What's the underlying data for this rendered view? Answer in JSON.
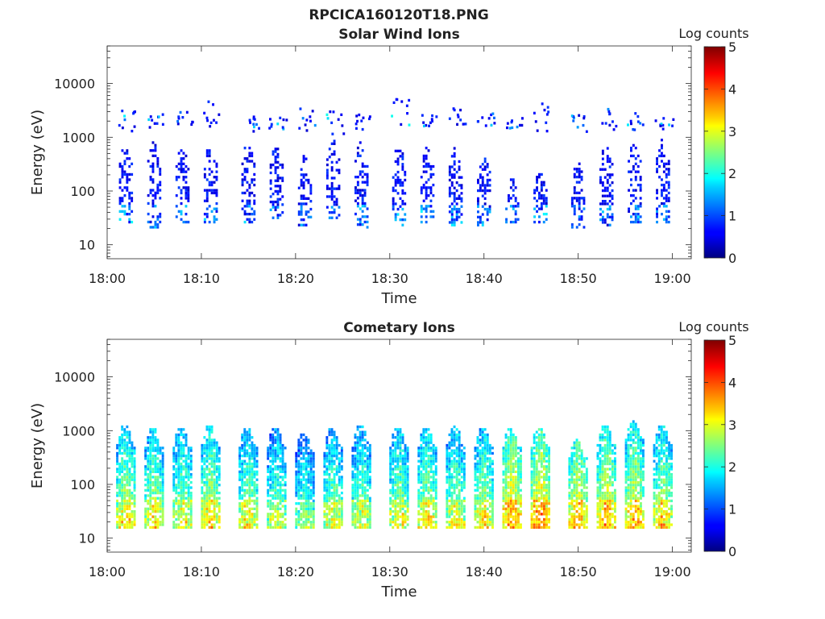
{
  "figure_title": "RPCICA160120T18.PNG",
  "chart_data": [
    {
      "type": "heatmap",
      "title": "Solar Wind Ions",
      "xlabel": "Time",
      "ylabel": "Energy (eV)",
      "y_scale": "log",
      "ylim": [
        5.5,
        50000
      ],
      "xlim": [
        "18:00",
        "19:02"
      ],
      "x_ticks": [
        "18:00",
        "18:10",
        "18:20",
        "18:30",
        "18:40",
        "18:50",
        "19:00"
      ],
      "y_ticks": [
        "10",
        "100",
        "1000",
        "10000"
      ],
      "colorbar": {
        "label": "Log counts",
        "min": 0,
        "max": 5,
        "ticks": [
          "0",
          "1",
          "2",
          "3",
          "4",
          "5"
        ],
        "colormap": "jet"
      },
      "scan_period_min": 3.2,
      "bursts": [
        {
          "start": "18:01",
          "center": "18:02",
          "e_low": 25,
          "e_high": 650,
          "peak_log_counts": 1.8,
          "upper_e_low": 1200,
          "upper_e_high": 3500
        },
        {
          "start": "18:04",
          "center": "18:05",
          "e_low": 20,
          "e_high": 700,
          "peak_log_counts": 1.6,
          "upper_e_low": 1300,
          "upper_e_high": 2500
        },
        {
          "start": "18:07",
          "center": "18:08",
          "e_low": 25,
          "e_high": 600,
          "peak_log_counts": 1.6,
          "upper_e_low": 1300,
          "upper_e_high": 3000
        },
        {
          "start": "18:10",
          "center": "18:11",
          "e_low": 25,
          "e_high": 650,
          "peak_log_counts": 1.7,
          "upper_e_low": 1200,
          "upper_e_high": 4500
        },
        {
          "start": "18:14",
          "center": "18:15",
          "e_low": 25,
          "e_high": 700,
          "peak_log_counts": 1.4,
          "upper_e_low": 1200,
          "upper_e_high": 2800
        },
        {
          "start": "18:17",
          "center": "18:18",
          "e_low": 30,
          "e_high": 650,
          "peak_log_counts": 1.5,
          "upper_e_low": 1300,
          "upper_e_high": 2200
        },
        {
          "start": "18:20",
          "center": "18:21",
          "e_low": 22,
          "e_high": 400,
          "peak_log_counts": 1.3,
          "upper_e_low": 1200,
          "upper_e_high": 4000
        },
        {
          "start": "18:23",
          "center": "18:24",
          "e_low": 30,
          "e_high": 800,
          "peak_log_counts": 1.6,
          "upper_e_low": 1000,
          "upper_e_high": 3500
        },
        {
          "start": "18:26",
          "center": "18:27",
          "e_low": 20,
          "e_high": 700,
          "peak_log_counts": 1.4,
          "upper_e_low": 1300,
          "upper_e_high": 2500
        },
        {
          "start": "18:30",
          "center": "18:31",
          "e_low": 22,
          "e_high": 650,
          "peak_log_counts": 1.8,
          "upper_e_low": 1300,
          "upper_e_high": 5000
        },
        {
          "start": "18:33",
          "center": "18:34",
          "e_low": 25,
          "e_high": 600,
          "peak_log_counts": 1.6,
          "upper_e_low": 1300,
          "upper_e_high": 2500
        },
        {
          "start": "18:36",
          "center": "18:37",
          "e_low": 22,
          "e_high": 550,
          "peak_log_counts": 1.6,
          "upper_e_low": 1200,
          "upper_e_high": 3500
        },
        {
          "start": "18:39",
          "center": "18:40",
          "e_low": 22,
          "e_high": 500,
          "peak_log_counts": 1.6,
          "upper_e_low": 1500,
          "upper_e_high": 3000
        },
        {
          "start": "18:42",
          "center": "18:43",
          "e_low": 25,
          "e_high": 150,
          "peak_log_counts": 1.4,
          "upper_e_low": 1300,
          "upper_e_high": 2200
        },
        {
          "start": "18:45",
          "center": "18:46",
          "e_low": 25,
          "e_high": 200,
          "peak_log_counts": 1.9,
          "upper_e_low": 1200,
          "upper_e_high": 4000
        },
        {
          "start": "18:49",
          "center": "18:50",
          "e_low": 20,
          "e_high": 300,
          "peak_log_counts": 1.6,
          "upper_e_low": 1200,
          "upper_e_high": 2500
        },
        {
          "start": "18:52",
          "center": "18:53",
          "e_low": 22,
          "e_high": 600,
          "peak_log_counts": 1.7,
          "upper_e_low": 1200,
          "upper_e_high": 3200
        },
        {
          "start": "18:55",
          "center": "18:56",
          "e_low": 25,
          "e_high": 750,
          "peak_log_counts": 1.7,
          "upper_e_low": 1300,
          "upper_e_high": 2700
        },
        {
          "start": "18:58",
          "center": "18:59",
          "e_low": 25,
          "e_high": 800,
          "peak_log_counts": 1.5,
          "upper_e_low": 1300,
          "upper_e_high": 2500
        }
      ]
    },
    {
      "type": "heatmap",
      "title": "Cometary Ions",
      "xlabel": "Time",
      "ylabel": "Energy (eV)",
      "y_scale": "log",
      "ylim": [
        5.5,
        50000
      ],
      "xlim": [
        "18:00",
        "19:02"
      ],
      "x_ticks": [
        "18:00",
        "18:10",
        "18:20",
        "18:30",
        "18:40",
        "18:50",
        "19:00"
      ],
      "y_ticks": [
        "10",
        "100",
        "1000",
        "10000"
      ],
      "colorbar": {
        "label": "Log counts",
        "min": 0,
        "max": 5,
        "ticks": [
          "0",
          "1",
          "2",
          "3",
          "4",
          "5"
        ],
        "colormap": "jet"
      },
      "scan_period_min": 3.2,
      "bursts": [
        {
          "start": "18:01",
          "center": "18:02",
          "e_low": 15,
          "e_high": 1100,
          "peak_log_counts": 2.8
        },
        {
          "start": "18:04",
          "center": "18:05",
          "e_low": 15,
          "e_high": 1000,
          "peak_log_counts": 2.7
        },
        {
          "start": "18:07",
          "center": "18:08",
          "e_low": 15,
          "e_high": 1000,
          "peak_log_counts": 2.6
        },
        {
          "start": "18:10",
          "center": "18:11",
          "e_low": 15,
          "e_high": 1100,
          "peak_log_counts": 2.8
        },
        {
          "start": "18:14",
          "center": "18:15",
          "e_low": 15,
          "e_high": 1000,
          "peak_log_counts": 2.6
        },
        {
          "start": "18:17",
          "center": "18:18",
          "e_low": 15,
          "e_high": 1000,
          "peak_log_counts": 2.4
        },
        {
          "start": "18:20",
          "center": "18:21",
          "e_low": 15,
          "e_high": 800,
          "peak_log_counts": 2.2
        },
        {
          "start": "18:23",
          "center": "18:24",
          "e_low": 15,
          "e_high": 1000,
          "peak_log_counts": 2.5
        },
        {
          "start": "18:26",
          "center": "18:27",
          "e_low": 15,
          "e_high": 1100,
          "peak_log_counts": 2.5
        },
        {
          "start": "18:30",
          "center": "18:31",
          "e_low": 15,
          "e_high": 1000,
          "peak_log_counts": 2.6
        },
        {
          "start": "18:33",
          "center": "18:34",
          "e_low": 15,
          "e_high": 1000,
          "peak_log_counts": 2.7
        },
        {
          "start": "18:36",
          "center": "18:37",
          "e_low": 15,
          "e_high": 1100,
          "peak_log_counts": 2.6
        },
        {
          "start": "18:39",
          "center": "18:40",
          "e_low": 15,
          "e_high": 1000,
          "peak_log_counts": 2.7
        },
        {
          "start": "18:42",
          "center": "18:43",
          "e_low": 15,
          "e_high": 1000,
          "peak_log_counts": 3.2
        },
        {
          "start": "18:45",
          "center": "18:46",
          "e_low": 15,
          "e_high": 1000,
          "peak_log_counts": 3.3
        },
        {
          "start": "18:49",
          "center": "18:50",
          "e_low": 15,
          "e_high": 600,
          "peak_log_counts": 3.0
        },
        {
          "start": "18:52",
          "center": "18:53",
          "e_low": 15,
          "e_high": 1100,
          "peak_log_counts": 3.1
        },
        {
          "start": "18:55",
          "center": "18:56",
          "e_low": 15,
          "e_high": 1300,
          "peak_log_counts": 3.0
        },
        {
          "start": "18:58",
          "center": "18:59",
          "e_low": 15,
          "e_high": 1100,
          "peak_log_counts": 2.8
        }
      ]
    }
  ]
}
